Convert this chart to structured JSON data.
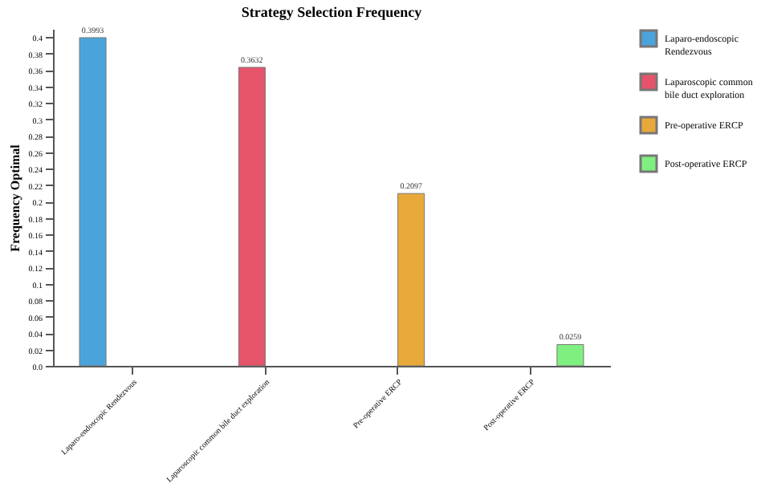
{
  "chart_data": {
    "type": "bar",
    "title": "Strategy Selection Frequency",
    "ylabel": "Frequency Optimal",
    "categories": [
      "Laparo-endoscopic Rendezvous",
      "Laparoscopic common bile duct exploration",
      "Pre-operative ERCP",
      "Post-operative ERCP"
    ],
    "series": [
      {
        "name": "Laparo-endoscopic Rendezvous",
        "color": "#4ba3db",
        "values": [
          0.3993,
          null,
          null,
          null
        ]
      },
      {
        "name": "Laparoscopic common bile duct exploration",
        "color": "#e5546a",
        "values": [
          null,
          0.3632,
          null,
          null
        ]
      },
      {
        "name": "Pre-operative ERCP",
        "color": "#e8a93a",
        "values": [
          null,
          null,
          0.2097,
          null
        ]
      },
      {
        "name": "Post-operative ERCP",
        "color": "#7ff07f",
        "values": [
          null,
          null,
          null,
          0.0259
        ]
      }
    ],
    "ylim": [
      0,
      0.41
    ],
    "yticks": [
      {
        "value": 0,
        "label": "0.0"
      },
      0.02,
      0.04,
      0.06,
      0.08,
      0.1,
      0.12,
      0.14,
      0.16,
      0.18,
      0.2,
      0.22,
      0.24,
      0.26,
      0.28,
      0.3,
      0.32,
      0.34,
      0.36,
      0.38,
      0.4
    ],
    "data_labels": true,
    "grid": false,
    "legend": "right"
  }
}
